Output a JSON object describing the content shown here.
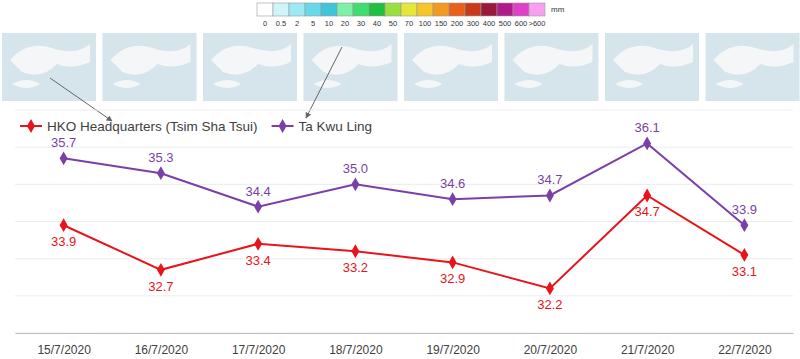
{
  "chart_data": {
    "type": "line",
    "categories": [
      "15/7/2020",
      "16/7/2020",
      "17/7/2020",
      "18/7/2020",
      "19/7/2020",
      "20/7/2020",
      "21/7/2020",
      "22/7/2020"
    ],
    "series": [
      {
        "name": "HKO Headquarters (Tsim Sha Tsui)",
        "color": "#e8141b",
        "marker": "diamond",
        "values": [
          33.9,
          32.7,
          33.4,
          33.2,
          32.9,
          32.2,
          34.7,
          33.1
        ],
        "value_labels": [
          "33.9",
          "32.7",
          "33.4",
          "33.2",
          "32.9",
          "32.2",
          "34.7",
          "33.1"
        ]
      },
      {
        "name": "Ta Kwu Ling",
        "color": "#7b3fa8",
        "marker": "diamond",
        "values": [
          35.7,
          35.3,
          34.4,
          35.0,
          34.6,
          34.7,
          36.1,
          33.9
        ],
        "value_labels": [
          "35.7",
          "35.3",
          "34.4",
          "35.0",
          "34.6",
          "34.7",
          "36.1",
          "33.9"
        ]
      }
    ],
    "ylim": [
      31,
      37
    ],
    "yticks": [
      31,
      32,
      33,
      34,
      35,
      36,
      37
    ],
    "grid": true,
    "tick_labels": "x",
    "data_labels": true,
    "legend": "top-left"
  },
  "color_bar": {
    "unit": "mm",
    "labels": [
      "0",
      "0.5",
      "2",
      "5",
      "10",
      "20",
      "30",
      "40",
      "50",
      "70",
      "100",
      "150",
      "200",
      "300",
      "400",
      "500",
      "600",
      ">600"
    ],
    "colors": [
      "#ffffff",
      "#cdf5fa",
      "#9de9f3",
      "#67d9ea",
      "#3fc4d9",
      "#7ef0a8",
      "#3fdc6e",
      "#1fbf3f",
      "#9adf3f",
      "#e6e63a",
      "#f5c52a",
      "#f09a22",
      "#e8601a",
      "#c83a1a",
      "#9a1a3a",
      "#b01a8a",
      "#e040c8",
      "#f8a0f0"
    ]
  }
}
